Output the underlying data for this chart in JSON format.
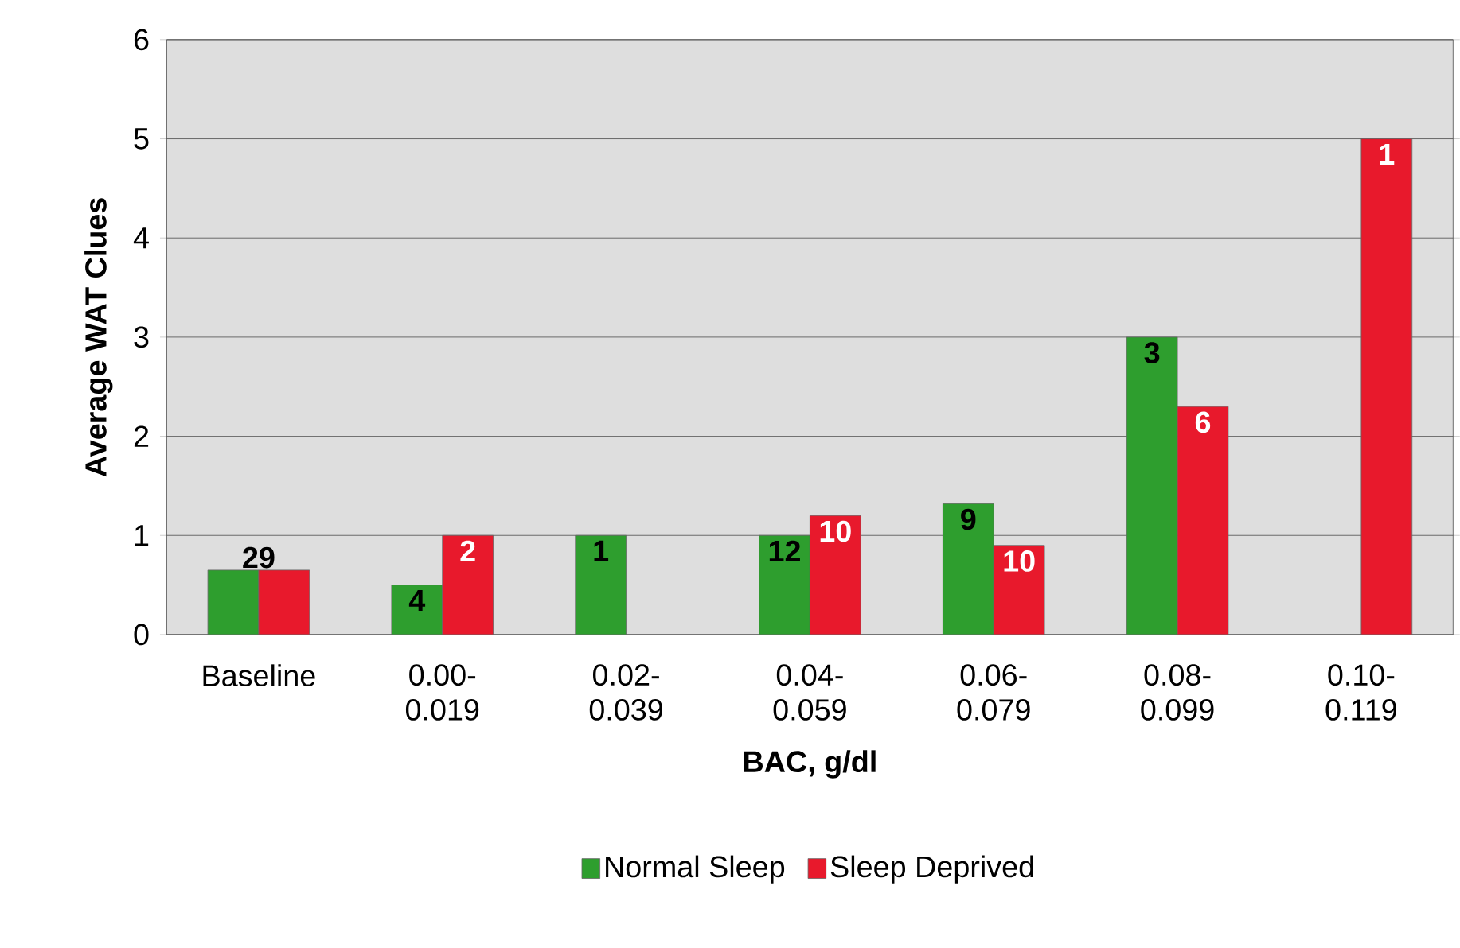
{
  "chart_data": {
    "type": "bar",
    "xlabel": "BAC, g/dl",
    "ylabel": "Average WAT Clues",
    "categories": [
      "Baseline",
      "0.00-0.019",
      "0.02-0.039",
      "0.04-0.059",
      "0.06-0.079",
      "0.08-0.099",
      "0.10-0.119"
    ],
    "series": [
      {
        "name": "Normal Sleep",
        "color": "#2e9e2e",
        "values": [
          0.65,
          0.5,
          1.0,
          1.0,
          1.32,
          3.0,
          null
        ]
      },
      {
        "name": "Sleep Deprived",
        "color": "#e8192c",
        "values": [
          0.65,
          1.0,
          null,
          1.2,
          0.9,
          2.3,
          5.0
        ]
      }
    ],
    "annotations": [
      {
        "text": "29",
        "x": "Baseline",
        "y": 0.65
      },
      {
        "text": "4",
        "x": "0.00-0.019",
        "y": 0.5
      },
      {
        "text": "2",
        "x": "0.00-0.019",
        "y": 1.0
      },
      {
        "text": "1",
        "x": "0.02-0.039",
        "y": 1.0
      },
      {
        "text": "12",
        "x": "0.04-0.059",
        "y": 1.0
      },
      {
        "text": "10",
        "x": "0.04-0.059",
        "y": 1.2
      },
      {
        "text": "9",
        "x": "0.06-0.079",
        "y": 1.32
      },
      {
        "text": "10",
        "x": "0.06-0.079",
        "y": 0.9
      },
      {
        "text": "3",
        "x": "0.08-0.099",
        "y": 3.0
      },
      {
        "text": "6",
        "x": "0.08-0.099",
        "y": 2.3
      },
      {
        "text": "1",
        "x": "0.10-0.119",
        "y": 5.0
      }
    ],
    "ylim": [
      0,
      6
    ],
    "yticks": [
      0,
      1,
      2,
      3,
      4,
      5,
      6
    ],
    "grid": "y",
    "legend": "bottom"
  }
}
